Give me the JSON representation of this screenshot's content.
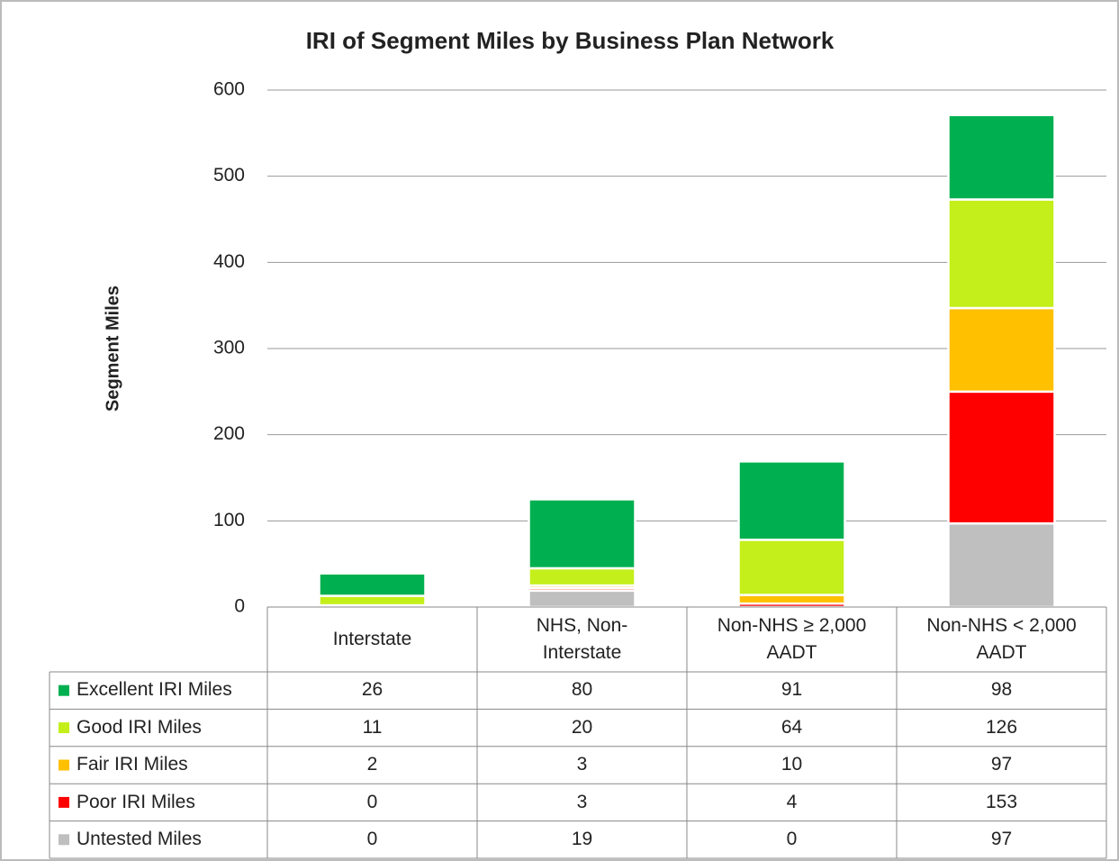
{
  "chart_data": {
    "type": "bar",
    "stacked": true,
    "title": "IRI of Segment Miles by Business Plan Network",
    "y_label": "Segment Miles",
    "categories": [
      "Interstate",
      "NHS, Non-\nInterstate",
      "Non-NHS ≥ 2,000\nAADT",
      "Non-NHS < 2,000\nAADT"
    ],
    "series": [
      {
        "name": "Excellent IRI Miles",
        "color": "#00b050",
        "values": [
          26,
          80,
          91,
          98
        ]
      },
      {
        "name": "Good IRI Miles",
        "color": "#c4ef1b",
        "values": [
          11,
          20,
          64,
          126
        ]
      },
      {
        "name": "Fair IRI Miles",
        "color": "#ffc000",
        "values": [
          2,
          3,
          10,
          97
        ]
      },
      {
        "name": "Poor IRI Miles",
        "color": "#ff0000",
        "values": [
          0,
          3,
          4,
          153
        ]
      },
      {
        "name": "Untested Miles",
        "color": "#bfbfbf",
        "values": [
          0,
          19,
          0,
          97
        ]
      }
    ],
    "ylim": [
      0,
      600
    ],
    "yticks": [
      0,
      100,
      200,
      300,
      400,
      500,
      600
    ],
    "grid": true
  }
}
